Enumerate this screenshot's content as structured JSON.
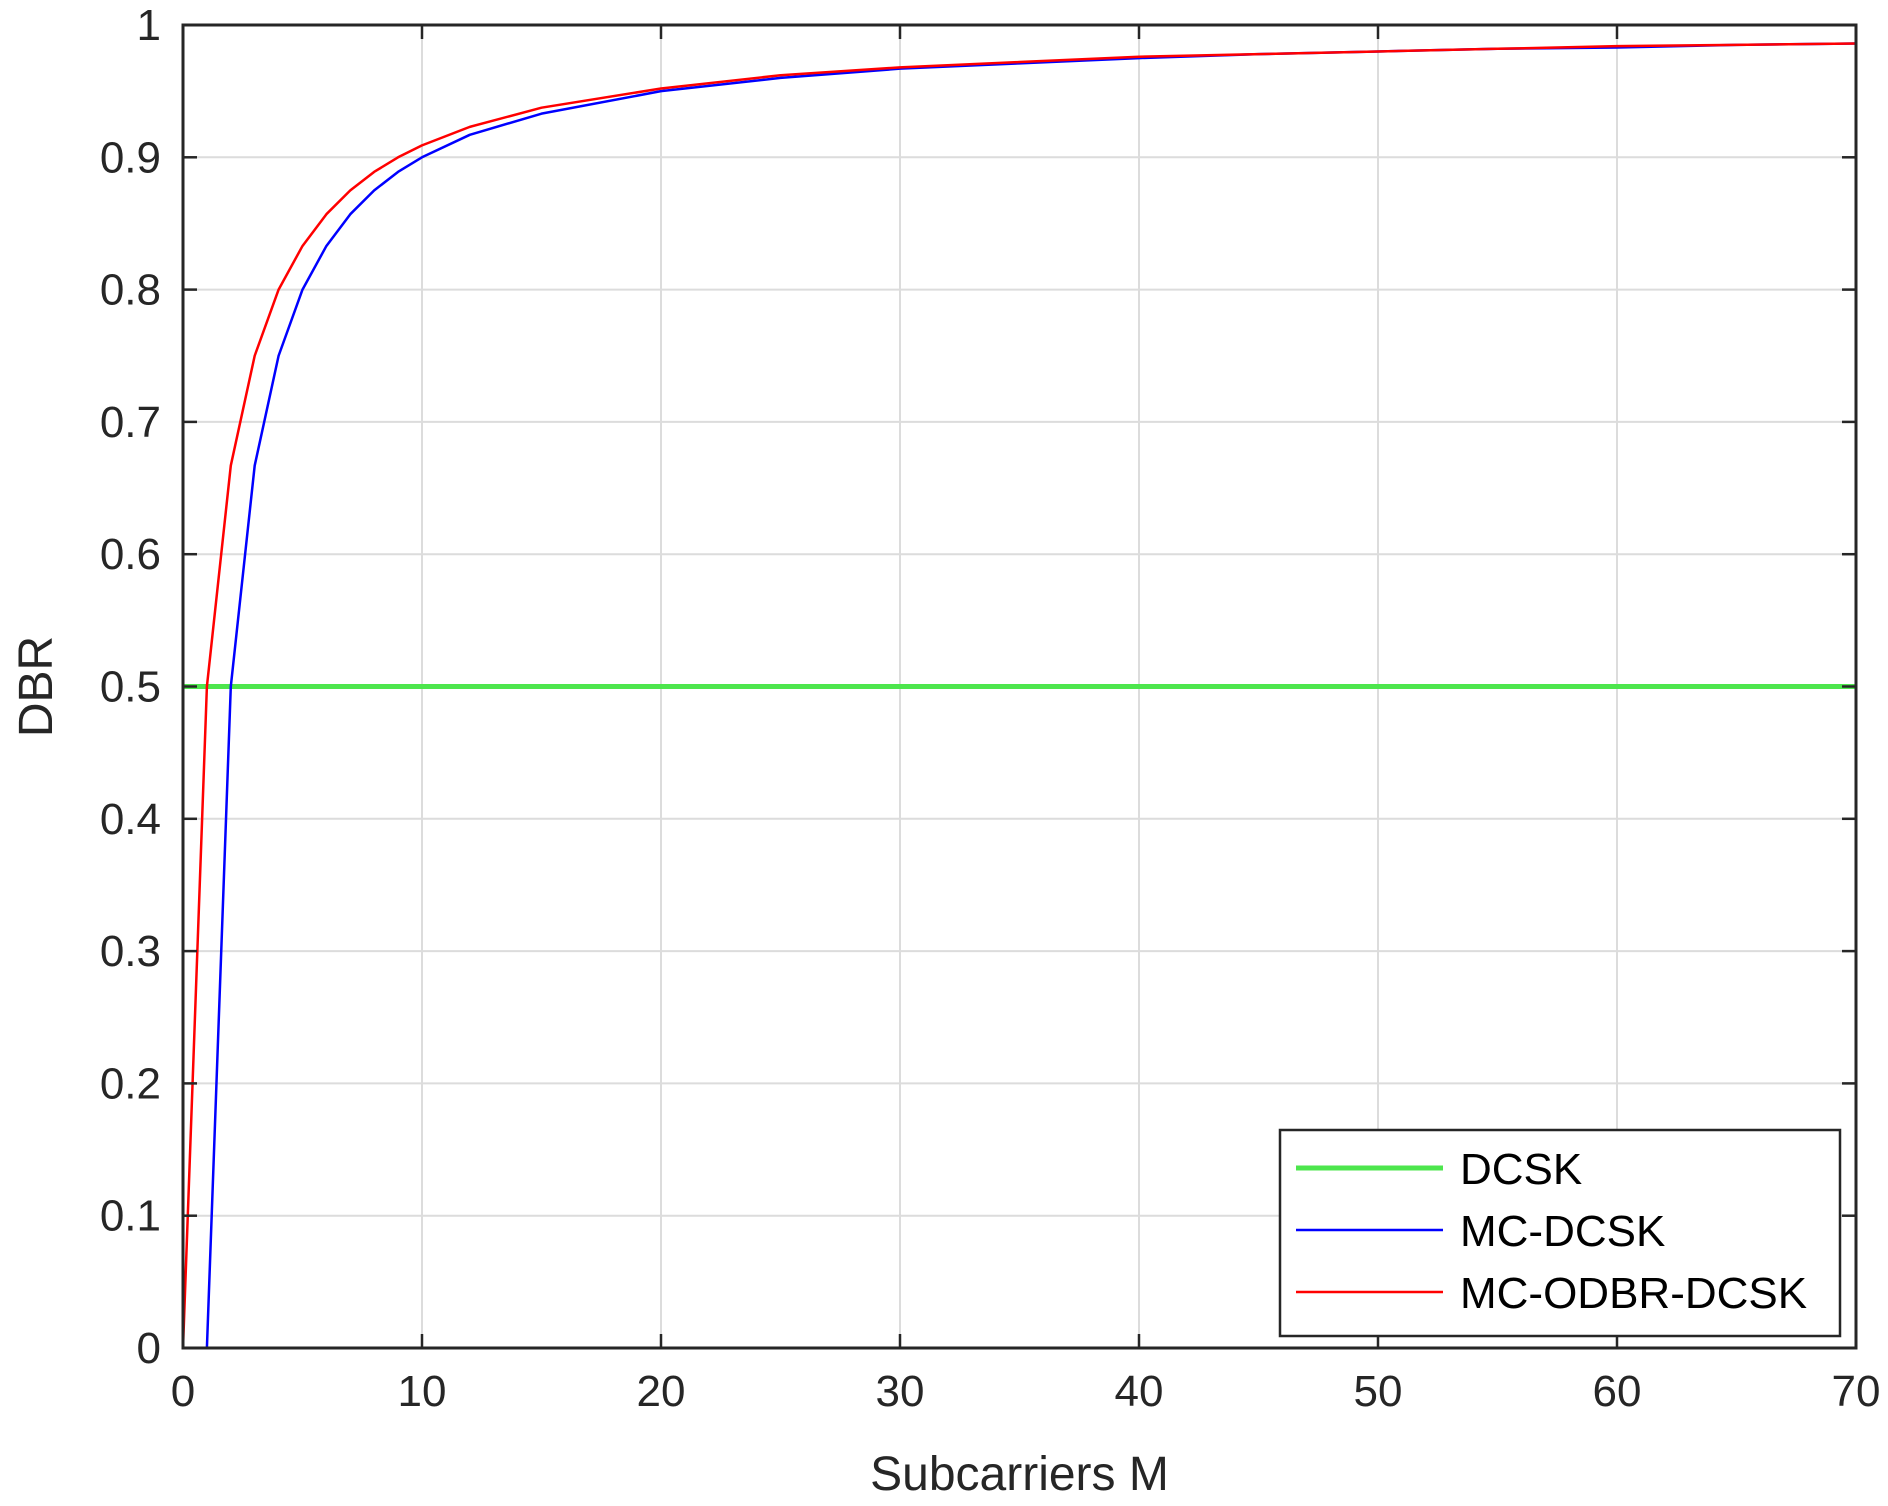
{
  "chart_data": {
    "type": "line",
    "title": "",
    "xlabel": "Subcarriers M",
    "ylabel": "DBR",
    "xlim": [
      0,
      70
    ],
    "ylim": [
      0,
      1
    ],
    "xticks": [
      0,
      10,
      20,
      30,
      40,
      50,
      60,
      70
    ],
    "yticks": [
      0,
      0.1,
      0.2,
      0.3,
      0.4,
      0.5,
      0.6,
      0.7,
      0.8,
      0.9,
      1
    ],
    "xtick_labels": [
      "0",
      "10",
      "20",
      "30",
      "40",
      "50",
      "60",
      "70"
    ],
    "ytick_labels": [
      "0",
      "0.1",
      "0.2",
      "0.3",
      "0.4",
      "0.5",
      "0.6",
      "0.7",
      "0.8",
      "0.9",
      "1"
    ],
    "grid": true,
    "legend_position": "bottom-right",
    "series": [
      {
        "name": "DCSK",
        "color": "#4de64d",
        "x": [
          0,
          70
        ],
        "y": [
          0.5,
          0.5
        ]
      },
      {
        "name": "MC-DCSK",
        "color": "#0000ff",
        "x": [
          1,
          2,
          3,
          4,
          5,
          6,
          7,
          8,
          9,
          10,
          12,
          15,
          20,
          25,
          30,
          35,
          40,
          45,
          50,
          55,
          60,
          65,
          70
        ],
        "y": [
          0,
          0.5,
          0.667,
          0.75,
          0.8,
          0.833,
          0.857,
          0.875,
          0.889,
          0.9,
          0.917,
          0.933,
          0.95,
          0.96,
          0.967,
          0.971,
          0.975,
          0.978,
          0.98,
          0.982,
          0.983,
          0.985,
          0.986
        ]
      },
      {
        "name": "MC-ODBR-DCSK",
        "color": "#ff0000",
        "x": [
          0,
          1,
          2,
          3,
          4,
          5,
          6,
          7,
          8,
          9,
          10,
          12,
          15,
          20,
          25,
          30,
          35,
          40,
          45,
          50,
          55,
          60,
          65,
          70
        ],
        "y": [
          0,
          0.5,
          0.667,
          0.75,
          0.8,
          0.833,
          0.857,
          0.875,
          0.889,
          0.9,
          0.909,
          0.923,
          0.9375,
          0.952,
          0.962,
          0.968,
          0.972,
          0.976,
          0.978,
          0.98,
          0.982,
          0.984,
          0.985,
          0.986
        ]
      }
    ]
  }
}
